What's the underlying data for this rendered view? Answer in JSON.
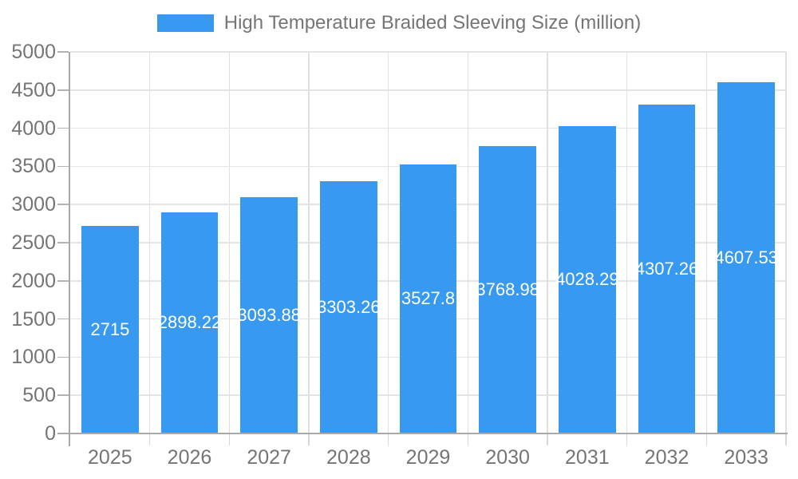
{
  "legend": {
    "label": "High Temperature Braided Sleeving Size (million)"
  },
  "colors": {
    "bar": "#3899f0",
    "axis_text": "#757575",
    "bar_label_text": "#ffffff",
    "grid": "#e4e4e6",
    "axis_line": "#a9a9ac"
  },
  "chart_data": {
    "type": "bar",
    "title": "High Temperature Braided Sleeving Size (million)",
    "categories": [
      "2025",
      "2026",
      "2027",
      "2028",
      "2029",
      "2030",
      "2031",
      "2032",
      "2033"
    ],
    "values": [
      2715,
      2898.22,
      3093.88,
      3303.26,
      3527.8,
      3768.98,
      4028.29,
      4307.26,
      4607.53
    ],
    "value_labels": [
      "2715",
      "2898.22",
      "3093.88",
      "3303.26",
      "3527.8",
      "3768.98",
      "4028.29",
      "4307.26",
      "4607.53"
    ],
    "xlabel": "",
    "ylabel": "",
    "ylim": [
      0,
      5000
    ],
    "ytick_step": 500,
    "ytick_labels": [
      "0",
      "500",
      "1000",
      "1500",
      "2000",
      "2500",
      "3000",
      "3500",
      "4000",
      "4500",
      "5000"
    ],
    "grid": "on",
    "legend_position": "top",
    "bar_color": "#3899f0"
  }
}
